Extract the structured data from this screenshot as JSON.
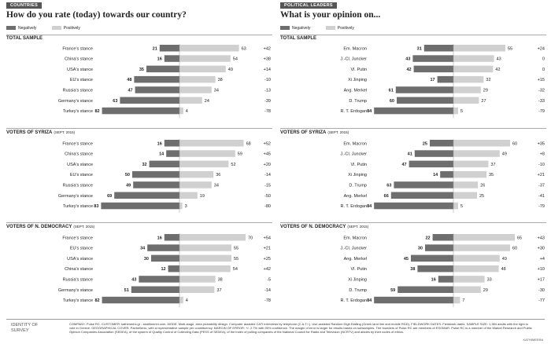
{
  "legend": {
    "negative": "Negatively",
    "positive": "Positively"
  },
  "colors": {
    "negative": "#6e6e6e",
    "positive": "#d0d0d0",
    "text": "#222222"
  },
  "panels": [
    {
      "tag": "COUNTRIES",
      "title": "How do you rate (today) towards our country?",
      "sections": [
        {
          "title": "TOTAL SAMPLE",
          "date": ""
        },
        {
          "title": "VOTERS OF SYRIZA",
          "date": "(SEPT. 2015)"
        },
        {
          "title": "VOTERS OF N. DEMOCRACY",
          "date": "(SEPT. 2015)"
        }
      ]
    },
    {
      "tag": "POLITICAL LEADERS",
      "title": "What is your opinion on...",
      "sections": [
        {
          "title": "TOTAL SAMPLE",
          "date": ""
        },
        {
          "title": "VOTERS OF SYRIZA",
          "date": "(SEPT. 2015)"
        },
        {
          "title": "VOTERS OF N. DEMOCRACY",
          "date": "(SEPT. 2015)"
        }
      ]
    }
  ],
  "chart_data": [
    {
      "type": "bar",
      "title": "How do you rate (today) towards our country? — TOTAL SAMPLE",
      "categories": [
        "France's stance",
        "China's stance",
        "USA's stance",
        "EU's stance",
        "Russia's stance",
        "Germany's stance",
        "Turkey's stance"
      ],
      "series": [
        {
          "name": "Negatively",
          "values": [
            21,
            16,
            35,
            48,
            47,
            63,
            82
          ]
        },
        {
          "name": "Positively",
          "values": [
            63,
            54,
            49,
            38,
            34,
            24,
            4
          ]
        }
      ],
      "net": [
        "+42",
        "+38",
        "+14",
        "-10",
        "-13",
        "-39",
        "-78"
      ]
    },
    {
      "type": "bar",
      "title": "How do you rate (today) towards our country? — VOTERS OF SYRIZA",
      "categories": [
        "France's stance",
        "China's stance",
        "USA's stance",
        "EU's stance",
        "Russia's stance",
        "Germany's stance",
        "Turkey's stance"
      ],
      "series": [
        {
          "name": "Negatively",
          "values": [
            16,
            14,
            32,
            50,
            49,
            69,
            83
          ]
        },
        {
          "name": "Positively",
          "values": [
            68,
            59,
            52,
            36,
            34,
            19,
            3
          ]
        }
      ],
      "net": [
        "+52",
        "+45",
        "+20",
        "-14",
        "-15",
        "-50",
        "-80"
      ]
    },
    {
      "type": "bar",
      "title": "How do you rate (today) towards our country? — VOTERS OF N. DEMOCRACY",
      "categories": [
        "France's stance",
        "EU's stance",
        "USA's stance",
        "China's stance",
        "Russia's stance",
        "Germany's stance",
        "Turkey's stance"
      ],
      "series": [
        {
          "name": "Negatively",
          "values": [
            16,
            34,
            30,
            12,
            43,
            51,
            82
          ]
        },
        {
          "name": "Positively",
          "values": [
            70,
            55,
            55,
            54,
            38,
            37,
            4
          ]
        }
      ],
      "net": [
        "+54",
        "+21",
        "+25",
        "+42",
        "-5",
        "-14",
        "-78"
      ]
    },
    {
      "type": "bar",
      "title": "What is your opinion on... — TOTAL SAMPLE",
      "categories": [
        "Em. Macron",
        "J.-Cl. Juncker",
        "Vl. Putin",
        "Xi Jinping",
        "Ang. Merkel",
        "D. Trump",
        "R. T. Erdogan"
      ],
      "series": [
        {
          "name": "Negatively",
          "values": [
            31,
            43,
            42,
            17,
            61,
            60,
            84
          ]
        },
        {
          "name": "Positively",
          "values": [
            55,
            43,
            42,
            32,
            29,
            27,
            5
          ]
        }
      ],
      "net": [
        "+24",
        "0",
        "0",
        "+15",
        "-32",
        "-33",
        "-79"
      ]
    },
    {
      "type": "bar",
      "title": "What is your opinion on... — VOTERS OF SYRIZA",
      "categories": [
        "Em. Macron",
        "J.-Cl. Juncker",
        "Vl. Putin",
        "Xi Jinping",
        "D. Trump",
        "Ang. Merkel",
        "R. T. Erdogan"
      ],
      "series": [
        {
          "name": "Negatively",
          "values": [
            25,
            41,
            47,
            14,
            63,
            66,
            84
          ]
        },
        {
          "name": "Positively",
          "values": [
            60,
            49,
            37,
            35,
            26,
            25,
            5
          ]
        }
      ],
      "net": [
        "+35",
        "+8",
        "-10",
        "+21",
        "-37",
        "-41",
        "-79"
      ]
    },
    {
      "type": "bar",
      "title": "What is your opinion on... — VOTERS OF N. DEMOCRACY",
      "categories": [
        "Em. Macron",
        "J.-Cl. Juncker",
        "Ang. Merkel",
        "Vl. Putin",
        "Xi Jinping",
        "D. Trump",
        "R. T. Erdogan"
      ],
      "series": [
        {
          "name": "Negatively",
          "values": [
            22,
            30,
            45,
            38,
            16,
            59,
            84
          ]
        },
        {
          "name": "Positively",
          "values": [
            65,
            60,
            49,
            48,
            33,
            29,
            7
          ]
        }
      ],
      "net": [
        "+43",
        "+30",
        "+4",
        "+10",
        "+17",
        "-30",
        "-77"
      ]
    }
  ],
  "footer": {
    "label": "IDENTITY OF SURVEY",
    "text": "COMPANY: Pulse RC. CUSTOMER: kathimerini.gr - skaitimerini.com. MODE: Multi-stage, area probability design. Computer assisted CATI interviews by telephone (C.A.T.I.). Use assisted Random Digit Dialling (Greek land line and mobile RDD). FIELDWORK DATES: Fieldwork dates. SAMPLE SIZE: 1,384 adults with the right to vote in Greece. GEOGRAPHICAL COVER: Panhellenic, with a representative sample per constituency. MARGIN OF ERROR: +/- 2.7% with 95% confidence. The margin of error is larger for results based on subsamples. The founders of Pulse RC are members of ESOMAR. Pulse RC is a member of the Market Research and Public Opinion Companies Association (SEDEA), of the system of Quality Control of Collecting Data (PESS of SEDEA), of the index of polling companies of the National Council for Radio and Television (NCRTV) and abides by their codes of ethics.",
    "credit": "KATHIMERINI"
  }
}
